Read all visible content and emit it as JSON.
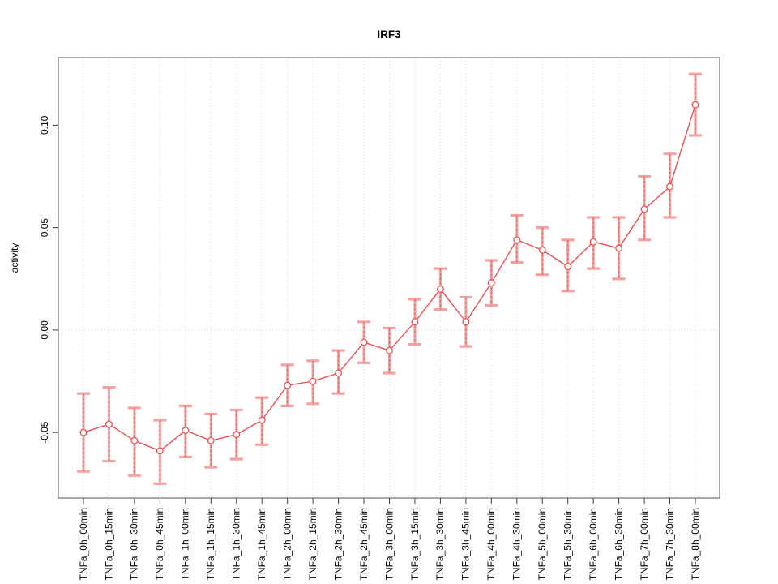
{
  "chart_data": {
    "type": "line",
    "error_bars": true,
    "title": "IRF3",
    "xlabel": "",
    "ylabel": "activity",
    "categories": [
      "TNFa_0h_00min",
      "TNFa_0h_15min",
      "TNFa_0h_30min",
      "TNFa_0h_45min",
      "TNFa_1h_00min",
      "TNFa_1h_15min",
      "TNFa_1h_30min",
      "TNFa_1h_45min",
      "TNFa_2h_00min",
      "TNFa_2h_15min",
      "TNFa_2h_30min",
      "TNFa_2h_45min",
      "TNFa_3h_00min",
      "TNFa_3h_15min",
      "TNFa_3h_30min",
      "TNFa_3h_45min",
      "TNFa_4h_00min",
      "TNFa_4h_30min",
      "TNFa_5h_00min",
      "TNFa_5h_30min",
      "TNFa_6h_00min",
      "TNFa_6h_30min",
      "TNFa_7h_00min",
      "TNFa_7h_30min",
      "TNFa_8h_00min"
    ],
    "series": [
      {
        "name": "activity",
        "values": [
          -0.05,
          -0.046,
          -0.054,
          -0.059,
          -0.049,
          -0.054,
          -0.051,
          -0.044,
          -0.027,
          -0.025,
          -0.021,
          -0.006,
          -0.01,
          0.004,
          0.02,
          0.004,
          0.023,
          0.044,
          0.039,
          0.031,
          0.043,
          0.04,
          0.059,
          0.07,
          0.11
        ],
        "lower": [
          -0.069,
          -0.064,
          -0.071,
          -0.075,
          -0.062,
          -0.067,
          -0.063,
          -0.056,
          -0.037,
          -0.036,
          -0.031,
          -0.016,
          -0.021,
          -0.007,
          0.01,
          -0.008,
          0.012,
          0.033,
          0.027,
          0.019,
          0.03,
          0.025,
          0.044,
          0.055,
          0.095
        ],
        "upper": [
          -0.031,
          -0.028,
          -0.038,
          -0.044,
          -0.037,
          -0.041,
          -0.039,
          -0.033,
          -0.017,
          -0.015,
          -0.01,
          0.004,
          0.001,
          0.015,
          0.03,
          0.016,
          0.034,
          0.056,
          0.05,
          0.044,
          0.055,
          0.055,
          0.075,
          0.086,
          0.125
        ]
      }
    ],
    "ylim": [
      -0.082,
      0.133
    ],
    "yticks": [
      {
        "value": -0.05,
        "label": "-0.05"
      },
      {
        "value": 0.0,
        "label": "0.00"
      },
      {
        "value": 0.05,
        "label": "0.05"
      },
      {
        "value": 0.1,
        "label": "0.10"
      }
    ],
    "grid": {
      "vertical": "dotted line at every category",
      "horizontal": "dotted line at y = 0 only"
    },
    "legend": "none",
    "style": {
      "line_color": "#ec5151",
      "errorbar_color": "#f5a2a2",
      "grid_color": "#dcdcdc",
      "box_color": "#8c8c8c",
      "tick_color": "#3c3c3c",
      "background": "#ffffff"
    }
  }
}
